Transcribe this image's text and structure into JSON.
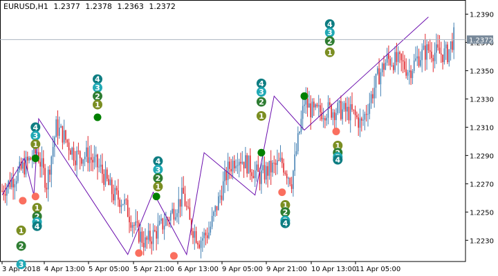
{
  "window": {
    "symbol_timeframe": "EURUSD,H1",
    "ohlc": [
      "1.2377",
      "1.2378",
      "1.2363",
      "1.2372"
    ]
  },
  "colors": {
    "bull_candle": "#4682b4",
    "bear_candle": "#e0282e",
    "zigzag": "#6a0dad",
    "current_price_line": "#a9b3bf",
    "price_label_bg": "#778899",
    "marker_fill": "#008000",
    "marker_salmon": "#fa6f5f",
    "wave_1": "#7b8e22",
    "wave_2": "#2e7d32",
    "wave_3": "#20a9b5",
    "wave_4": "#0e7d82"
  },
  "current_price_label": "1.2372",
  "chart_data": {
    "type": "candlestick",
    "title": "EURUSD,H1",
    "ylim": [
      1.2215,
      1.24
    ],
    "y_ticks": [
      "1.2390",
      "1.2370",
      "1.2350",
      "1.2330",
      "1.2310",
      "1.2290",
      "1.2270",
      "1.2250",
      "1.2230"
    ],
    "x_ticks": [
      "3 Apr 2018",
      "4 Apr 13:00",
      "5 Apr 05:00",
      "5 Apr 21:00",
      "6 Apr 13:00",
      "9 Apr 05:00",
      "9 Apr 21:00",
      "10 Apr 13:00",
      "11 Apr 05:00"
    ],
    "current_price": 1.2372,
    "price_anchors": [
      [
        0,
        1.2265
      ],
      [
        8,
        1.2275
      ],
      [
        16,
        1.2285
      ],
      [
        22,
        1.2293
      ],
      [
        28,
        1.227
      ],
      [
        34,
        1.231
      ],
      [
        38,
        1.2305
      ],
      [
        46,
        1.229
      ],
      [
        54,
        1.229
      ],
      [
        62,
        1.228
      ],
      [
        70,
        1.2262
      ],
      [
        76,
        1.2258
      ],
      [
        84,
        1.2238
      ],
      [
        90,
        1.2228
      ],
      [
        96,
        1.2235
      ],
      [
        104,
        1.2245
      ],
      [
        110,
        1.2255
      ],
      [
        114,
        1.2262
      ],
      [
        118,
        1.2242
      ],
      [
        124,
        1.223
      ],
      [
        130,
        1.2236
      ],
      [
        136,
        1.2258
      ],
      [
        142,
        1.228
      ],
      [
        148,
        1.229
      ],
      [
        156,
        1.2282
      ],
      [
        162,
        1.2275
      ],
      [
        168,
        1.228
      ],
      [
        176,
        1.2285
      ],
      [
        182,
        1.2272
      ],
      [
        186,
        1.23
      ],
      [
        190,
        1.2328
      ],
      [
        196,
        1.232
      ],
      [
        204,
        1.2322
      ],
      [
        212,
        1.2322
      ],
      [
        220,
        1.232
      ],
      [
        226,
        1.2312
      ],
      [
        230,
        1.2325
      ],
      [
        236,
        1.2345
      ],
      [
        242,
        1.2358
      ],
      [
        250,
        1.2356
      ],
      [
        256,
        1.235
      ],
      [
        262,
        1.236
      ],
      [
        268,
        1.2365
      ],
      [
        274,
        1.2362
      ],
      [
        280,
        1.2362
      ],
      [
        284,
        1.2374
      ]
    ],
    "zigzag": [
      [
        0,
        1.2262
      ],
      [
        14,
        1.2288
      ],
      [
        20,
        1.2262
      ],
      [
        23,
        1.2316
      ],
      [
        79,
        1.222
      ],
      [
        95,
        1.2264
      ],
      [
        116,
        1.222
      ],
      [
        127,
        1.2292
      ],
      [
        159,
        1.2262
      ],
      [
        171,
        1.2332
      ],
      [
        190,
        1.2308
      ],
      [
        268,
        1.2388
      ]
    ],
    "dots": [
      {
        "bar": 21,
        "price": 1.2288,
        "color": "marker_fill"
      },
      {
        "bar": 60,
        "price": 1.2317,
        "color": "marker_fill"
      },
      {
        "bar": 97,
        "price": 1.2261,
        "color": "marker_fill"
      },
      {
        "bar": 163,
        "price": 1.2292,
        "color": "marker_fill"
      },
      {
        "bar": 190,
        "price": 1.2332,
        "color": "marker_fill"
      },
      {
        "bar": 13,
        "price": 1.2258,
        "color": "marker_salmon"
      },
      {
        "bar": 21,
        "price": 1.2261,
        "color": "marker_salmon"
      },
      {
        "bar": 86,
        "price": 1.2221,
        "color": "marker_salmon"
      },
      {
        "bar": 108,
        "price": 1.2219,
        "color": "marker_salmon"
      },
      {
        "bar": 176,
        "price": 1.2264,
        "color": "marker_salmon"
      },
      {
        "bar": 210,
        "price": 1.2307,
        "color": "marker_salmon"
      }
    ],
    "wave_labels": [
      {
        "bar": 60,
        "price": 1.2344,
        "text": "4"
      },
      {
        "bar": 60,
        "price": 1.2338,
        "text": "3"
      },
      {
        "bar": 60,
        "price": 1.2332,
        "text": "2"
      },
      {
        "bar": 60,
        "price": 1.2326,
        "text": "1"
      },
      {
        "bar": 21,
        "price": 1.231,
        "text": "4"
      },
      {
        "bar": 21,
        "price": 1.2304,
        "text": "3"
      },
      {
        "bar": 21,
        "price": 1.2298,
        "text": "1"
      },
      {
        "bar": 12,
        "price": 1.2237,
        "text": "1"
      },
      {
        "bar": 12,
        "price": 1.2226,
        "text": "2"
      },
      {
        "bar": 12,
        "price": 1.2213,
        "text": "3"
      },
      {
        "bar": 22,
        "price": 1.2253,
        "text": "1"
      },
      {
        "bar": 22,
        "price": 1.2247,
        "text": "2"
      },
      {
        "bar": 22,
        "price": 1.2243,
        "text": "3"
      },
      {
        "bar": 22,
        "price": 1.224,
        "text": "4"
      },
      {
        "bar": 98,
        "price": 1.2286,
        "text": "4"
      },
      {
        "bar": 98,
        "price": 1.228,
        "text": "3"
      },
      {
        "bar": 98,
        "price": 1.2274,
        "text": "2"
      },
      {
        "bar": 98,
        "price": 1.2268,
        "text": "1"
      },
      {
        "bar": 163,
        "price": 1.2341,
        "text": "4"
      },
      {
        "bar": 163,
        "price": 1.2335,
        "text": "3"
      },
      {
        "bar": 163,
        "price": 1.2328,
        "text": "2"
      },
      {
        "bar": 163,
        "price": 1.2318,
        "text": "1"
      },
      {
        "bar": 178,
        "price": 1.2255,
        "text": "1"
      },
      {
        "bar": 178,
        "price": 1.225,
        "text": "2"
      },
      {
        "bar": 178,
        "price": 1.2244,
        "text": "3"
      },
      {
        "bar": 178,
        "price": 1.2242,
        "text": "4"
      },
      {
        "bar": 206,
        "price": 1.2383,
        "text": "4"
      },
      {
        "bar": 206,
        "price": 1.2377,
        "text": "3"
      },
      {
        "bar": 206,
        "price": 1.2371,
        "text": "2"
      },
      {
        "bar": 206,
        "price": 1.2363,
        "text": "1"
      },
      {
        "bar": 211,
        "price": 1.2297,
        "text": "1"
      },
      {
        "bar": 211,
        "price": 1.2292,
        "text": "2"
      },
      {
        "bar": 211,
        "price": 1.2289,
        "text": "3"
      },
      {
        "bar": 211,
        "price": 1.2287,
        "text": "4"
      }
    ]
  }
}
